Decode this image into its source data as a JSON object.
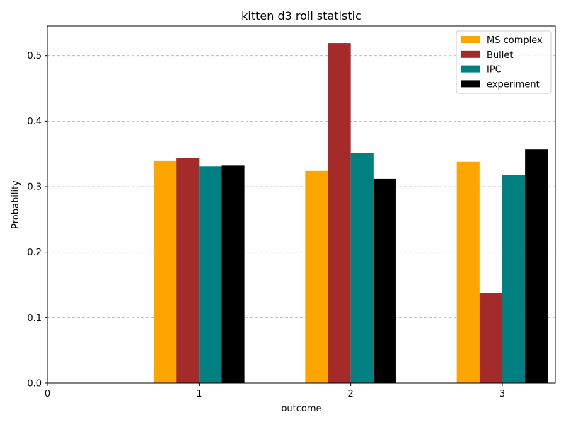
{
  "chart_data": {
    "type": "bar",
    "title": "kitten d3 roll statistic",
    "xlabel": "outcome",
    "ylabel": "Probability",
    "categories": [
      1,
      2,
      3
    ],
    "xticks": [
      0,
      1,
      2,
      3
    ],
    "xlim": [
      0,
      3.35
    ],
    "ylim": [
      0,
      0.545
    ],
    "yticks": [
      0.0,
      0.1,
      0.2,
      0.3,
      0.4,
      0.5
    ],
    "grid": "y-dashed",
    "legend_position": "top-right",
    "series": [
      {
        "name": "MS complex",
        "color": "#ffa500",
        "values": [
          0.339,
          0.324,
          0.338
        ]
      },
      {
        "name": "Bullet",
        "color": "#a52a2a",
        "values": [
          0.344,
          0.519,
          0.138
        ]
      },
      {
        "name": "IPC",
        "color": "#008080",
        "values": [
          0.331,
          0.351,
          0.318
        ]
      },
      {
        "name": "experiment",
        "color": "#000000",
        "values": [
          0.332,
          0.312,
          0.357
        ]
      }
    ]
  }
}
